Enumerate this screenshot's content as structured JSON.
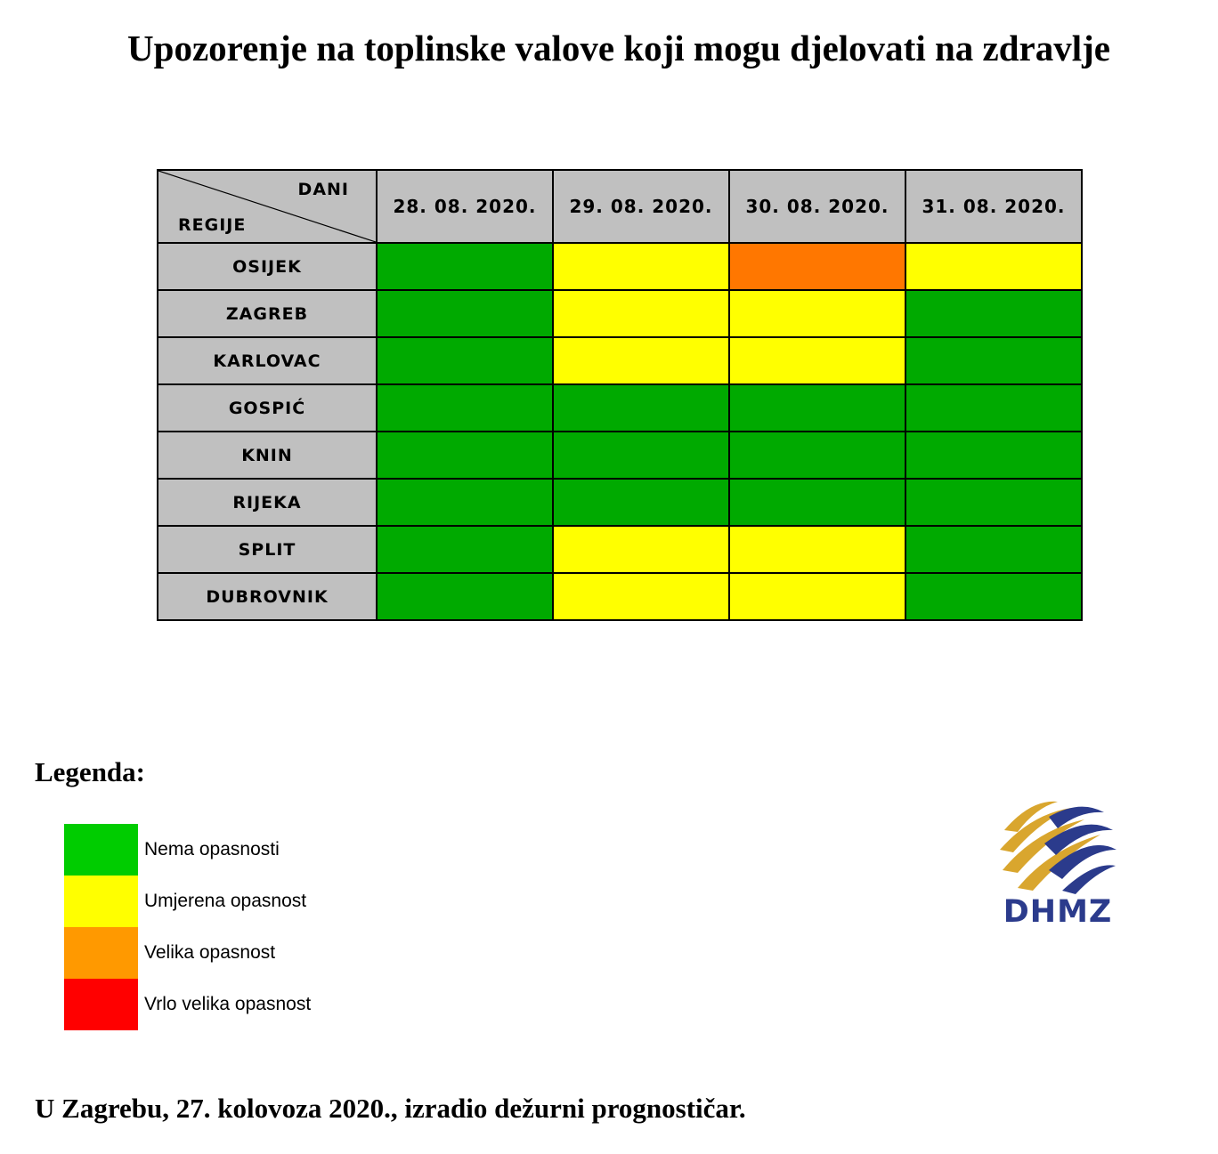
{
  "title": "Upozorenje na toplinske valove koji mogu djelovati na zdravlje",
  "table": {
    "corner_top": "DANI",
    "corner_bottom": "REGIJE",
    "dates": [
      "28. 08. 2020.",
      "29. 08. 2020.",
      "30. 08. 2020.",
      "31. 08. 2020."
    ],
    "rows": [
      {
        "region": "OSIJEK",
        "levels": [
          "green",
          "yellow",
          "orange",
          "yellow"
        ]
      },
      {
        "region": "ZAGREB",
        "levels": [
          "green",
          "yellow",
          "yellow",
          "green"
        ]
      },
      {
        "region": "KARLOVAC",
        "levels": [
          "green",
          "yellow",
          "yellow",
          "green"
        ]
      },
      {
        "region": "GOSPIĆ",
        "levels": [
          "green",
          "green",
          "green",
          "green"
        ]
      },
      {
        "region": "KNIN",
        "levels": [
          "green",
          "green",
          "green",
          "green"
        ]
      },
      {
        "region": "RIJEKA",
        "levels": [
          "green",
          "green",
          "green",
          "green"
        ]
      },
      {
        "region": "SPLIT",
        "levels": [
          "green",
          "yellow",
          "yellow",
          "green"
        ]
      },
      {
        "region": "DUBROVNIK",
        "levels": [
          "green",
          "yellow",
          "yellow",
          "green"
        ]
      }
    ],
    "colors": {
      "green": "#00aa00",
      "yellow": "#ffff00",
      "orange": "#ff7700",
      "red": "#ff0000"
    }
  },
  "legend": {
    "title": "Legenda:",
    "items": [
      {
        "label": "Nema opasnosti",
        "color": "#00cc00"
      },
      {
        "label": "Umjerena opasnost",
        "color": "#ffff00"
      },
      {
        "label": "Velika opasnost",
        "color": "#ff9900"
      },
      {
        "label": "Vrlo velika opasnost",
        "color": "#ff0000"
      }
    ]
  },
  "logo": {
    "text": "DHMZ",
    "icon": "dhmz-logo-icon",
    "colors": {
      "gold": "#d9a62e",
      "blue": "#2b3b8c"
    }
  },
  "footer": "U Zagrebu, 27. kolovoza 2020., izradio dežurni prognostičar."
}
